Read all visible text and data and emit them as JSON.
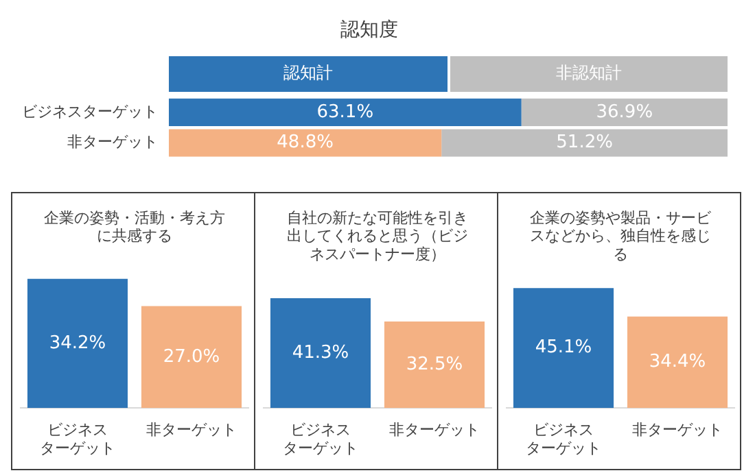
{
  "chart_data": [
    {
      "type": "bar",
      "title": "認知度",
      "orientation": "horizontal",
      "stacked": true,
      "legend": "top",
      "tick_labels": "y",
      "xlim": [
        0,
        100
      ],
      "categories": [
        "ビジネスターゲット",
        "非ターゲット"
      ],
      "series": [
        {
          "name": "認知計",
          "color": "#2e75b6",
          "colors": [
            "#2e75b6",
            "#f4b183"
          ],
          "values": [
            63.1,
            48.8
          ],
          "value_labels": [
            "63.1%",
            "48.8%"
          ]
        },
        {
          "name": "非認知計",
          "color": "#bfbfbf",
          "values": [
            36.9,
            51.2
          ],
          "value_labels": [
            "36.9%",
            "51.2%"
          ]
        }
      ]
    },
    {
      "type": "bar",
      "title": "企業の姿勢・活動・考え方に共感する",
      "tick_labels": "x",
      "categories": [
        "ビジネスターゲット",
        "非ターゲット"
      ],
      "values": [
        34.2,
        27.0
      ],
      "colors": [
        "#2e75b6",
        "#f4b183"
      ],
      "value_labels": [
        "34.2%",
        "27.0%"
      ]
    },
    {
      "type": "bar",
      "title": "自社の新たな可能性を引き出してくれると思う（ビジネスパートナー度）",
      "tick_labels": "x",
      "categories": [
        "ビジネスターゲット",
        "非ターゲット"
      ],
      "values": [
        41.3,
        32.5
      ],
      "colors": [
        "#2e75b6",
        "#f4b183"
      ],
      "value_labels": [
        "41.3%",
        "32.5%"
      ]
    },
    {
      "type": "bar",
      "title": "企業の姿勢や製品・サービスなどから、独自性を感じる",
      "tick_labels": "x",
      "categories": [
        "ビジネスターゲット",
        "非ターゲット"
      ],
      "values": [
        45.1,
        34.4
      ],
      "colors": [
        "#2e75b6",
        "#f4b183"
      ],
      "value_labels": [
        "45.1%",
        "34.4%"
      ]
    }
  ]
}
